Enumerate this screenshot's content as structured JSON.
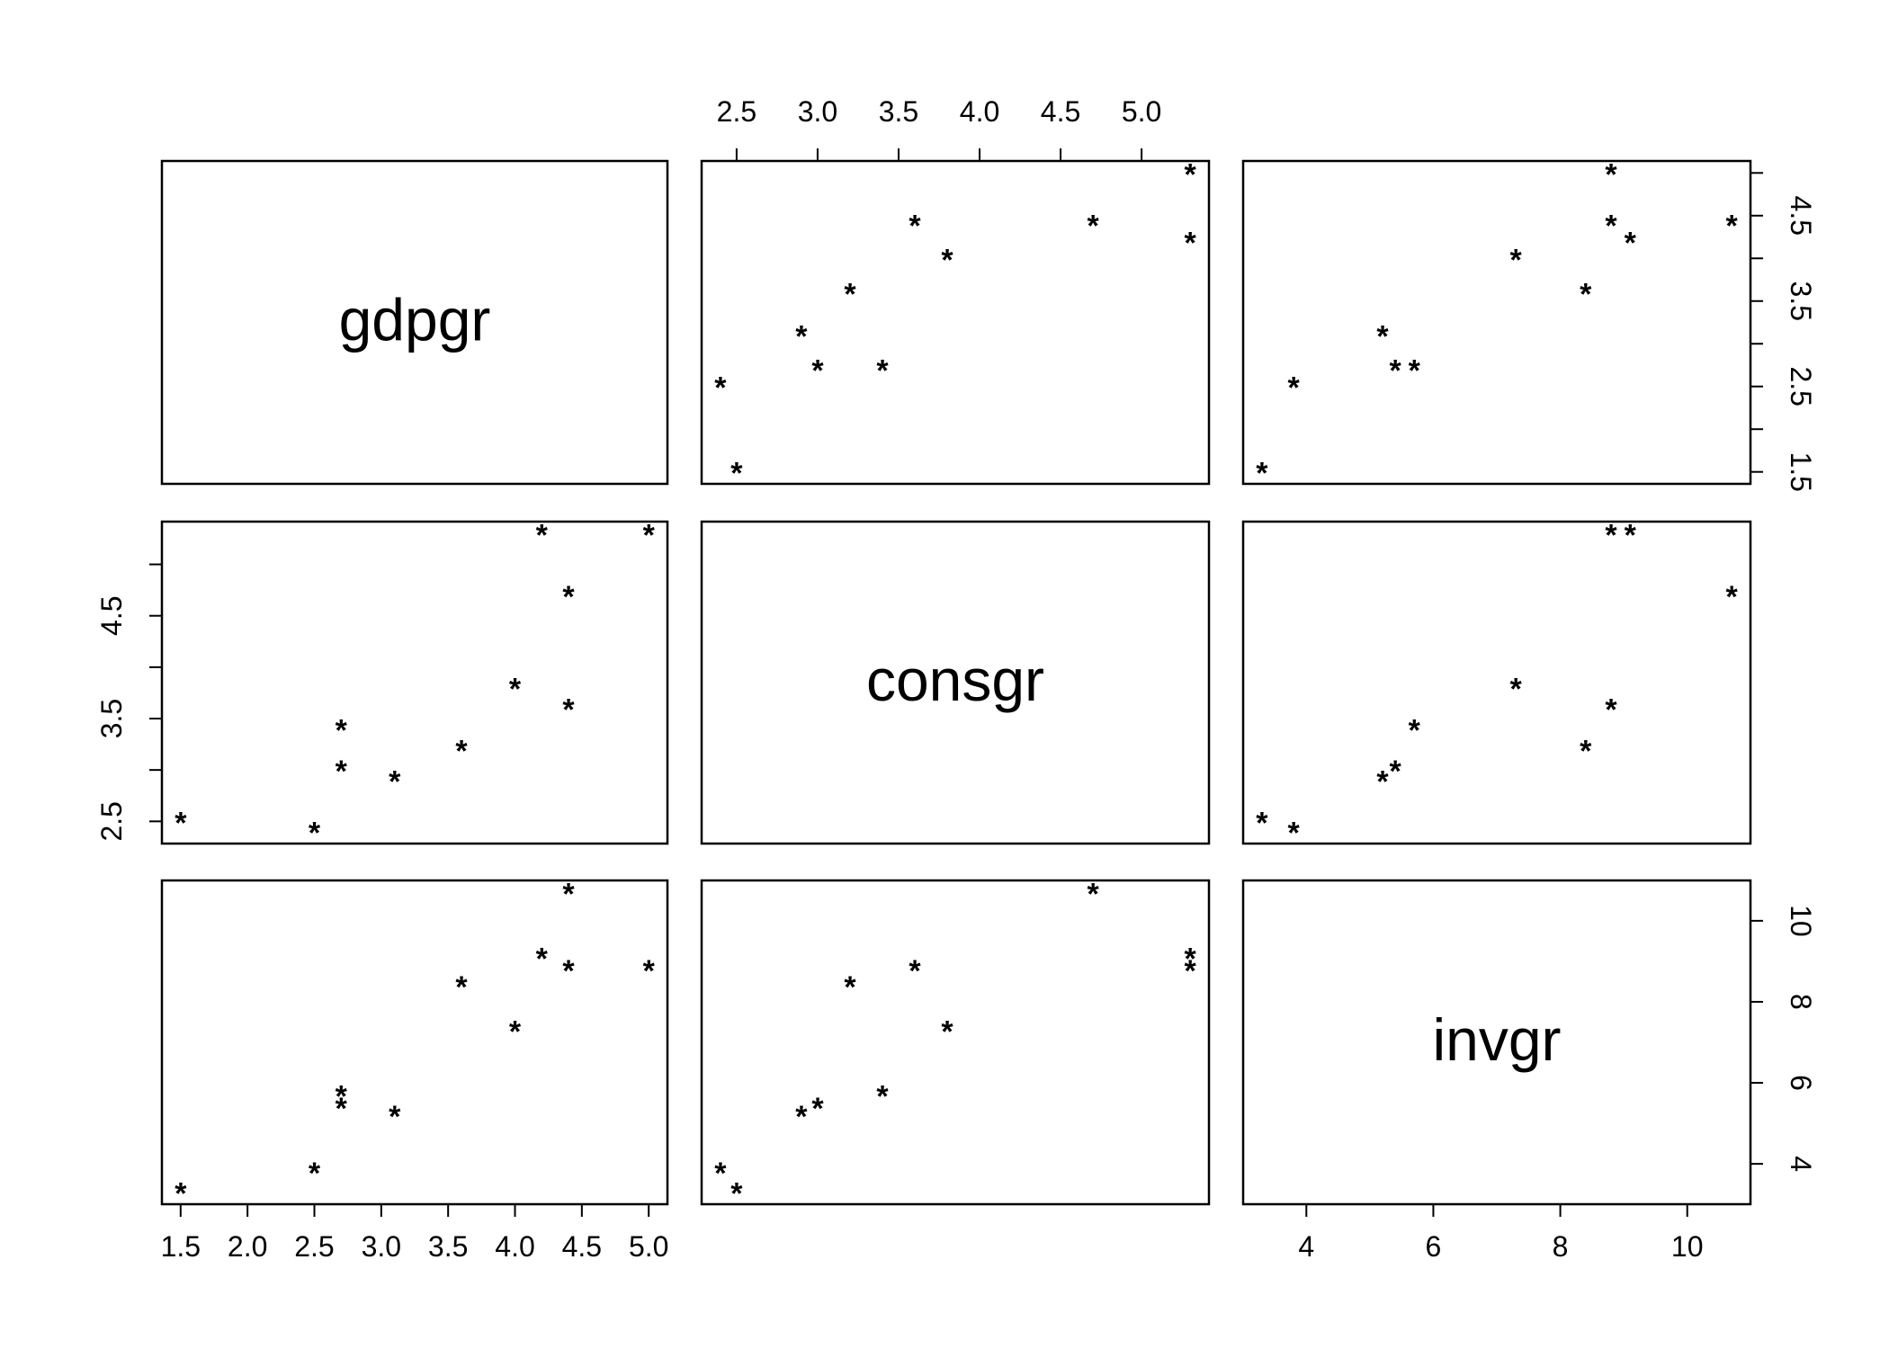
{
  "chart_data": {
    "type": "scatter",
    "kind": "scatterplot-matrix",
    "variables": [
      "gdpgr",
      "consgr",
      "invgr"
    ],
    "marker": "*",
    "axis_ticks": {
      "gdpgr": [
        "1.5",
        "2.0",
        "2.5",
        "3.0",
        "3.5",
        "4.0",
        "4.5",
        "5.0"
      ],
      "consgr": [
        "2.5",
        "3.0",
        "3.5",
        "4.0",
        "4.5",
        "5.0"
      ],
      "invgr": [
        "4",
        "6",
        "8",
        "10"
      ]
    },
    "observations": [
      {
        "gdpgr": 1.5,
        "consgr": 2.5,
        "invgr": 3.3
      },
      {
        "gdpgr": 2.5,
        "consgr": 2.4,
        "invgr": 3.8
      },
      {
        "gdpgr": 2.7,
        "consgr": 3.0,
        "invgr": 5.4
      },
      {
        "gdpgr": 2.7,
        "consgr": 3.4,
        "invgr": 5.7
      },
      {
        "gdpgr": 3.1,
        "consgr": 2.9,
        "invgr": 5.2
      },
      {
        "gdpgr": 3.6,
        "consgr": 3.2,
        "invgr": 8.4
      },
      {
        "gdpgr": 4.0,
        "consgr": 3.8,
        "invgr": 7.3
      },
      {
        "gdpgr": 4.2,
        "consgr": 5.3,
        "invgr": 9.1
      },
      {
        "gdpgr": 4.4,
        "consgr": 3.6,
        "invgr": 8.8
      },
      {
        "gdpgr": 4.4,
        "consgr": 4.7,
        "invgr": 10.7
      },
      {
        "gdpgr": 5.0,
        "consgr": 5.3,
        "invgr": 8.8
      }
    ]
  }
}
